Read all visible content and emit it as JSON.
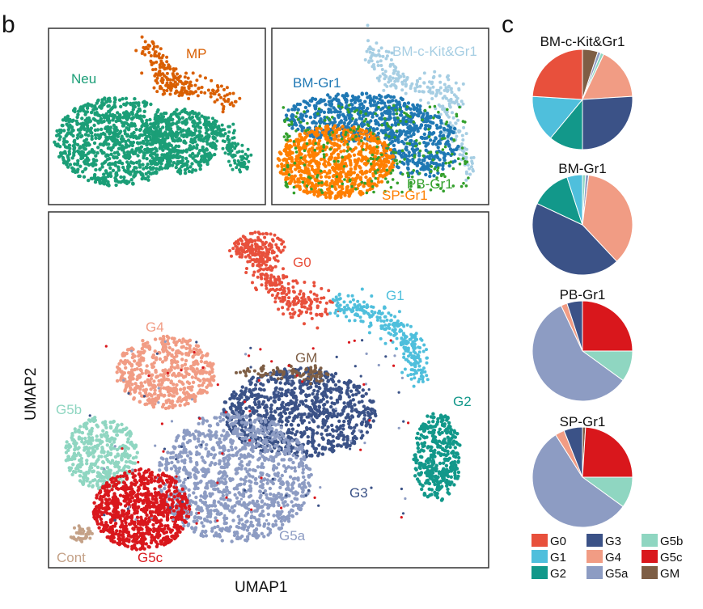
{
  "panel_b": {
    "letter": "b",
    "x_axis_label": "UMAP1",
    "y_axis_label": "UMAP2",
    "top_left": {
      "type": "scatter",
      "groups": [
        {
          "name": "Neu",
          "color": "#1b9e77"
        },
        {
          "name": "MP",
          "color": "#d95f02"
        }
      ]
    },
    "top_right": {
      "type": "scatter",
      "groups": [
        {
          "name": "BM-c-Kit&Gr1",
          "color": "#a6cee3"
        },
        {
          "name": "BM-Gr1",
          "color": "#1f78b4"
        },
        {
          "name": "PB-Gr1",
          "color": "#33a02c"
        },
        {
          "name": "SP-Gr1",
          "color": "#ff7f00"
        }
      ]
    },
    "main": {
      "type": "scatter",
      "clusters": [
        {
          "name": "G0",
          "color": "#e8503c"
        },
        {
          "name": "G1",
          "color": "#4fbfdc"
        },
        {
          "name": "G2",
          "color": "#12988a"
        },
        {
          "name": "G3",
          "color": "#3b5287"
        },
        {
          "name": "G4",
          "color": "#f19c84"
        },
        {
          "name": "G5a",
          "color": "#8d9cc3"
        },
        {
          "name": "G5b",
          "color": "#8fd6c1"
        },
        {
          "name": "G5c",
          "color": "#d9171c"
        },
        {
          "name": "GM",
          "color": "#7e5e45"
        },
        {
          "name": "Cont",
          "color": "#c4a187"
        }
      ]
    }
  },
  "panel_c": {
    "letter": "c",
    "chart_data": [
      {
        "type": "pie",
        "title": "BM-c-Kit&Gr1",
        "labels": [
          "GM",
          "G5a",
          "G5b",
          "G4",
          "G3",
          "G2",
          "G1",
          "G0"
        ],
        "values": [
          5,
          1,
          1,
          17,
          26,
          11,
          15,
          24
        ]
      },
      {
        "type": "pie",
        "title": "BM-Gr1",
        "labels": [
          "G5b",
          "G5a",
          "G4",
          "G3",
          "G2",
          "G1"
        ],
        "values": [
          1,
          1,
          36,
          44,
          13,
          5
        ]
      },
      {
        "type": "pie",
        "title": "PB-Gr1",
        "labels": [
          "G5c",
          "G5b",
          "G5a",
          "G4",
          "G3"
        ],
        "values": [
          25,
          10,
          58,
          2,
          5
        ]
      },
      {
        "type": "pie",
        "title": "SP-Gr1",
        "labels": [
          "GM",
          "G5c",
          "G5b",
          "G5a",
          "G4",
          "G3"
        ],
        "values": [
          1,
          24,
          10,
          56,
          3,
          6
        ]
      }
    ],
    "legend": [
      {
        "label": "G0",
        "color": "#e8503c"
      },
      {
        "label": "G3",
        "color": "#3b5287"
      },
      {
        "label": "G5b",
        "color": "#8fd6c1"
      },
      {
        "label": "G1",
        "color": "#4fbfdc"
      },
      {
        "label": "G4",
        "color": "#f19c84"
      },
      {
        "label": "G5c",
        "color": "#d9171c"
      },
      {
        "label": "G2",
        "color": "#12988a"
      },
      {
        "label": "G5a",
        "color": "#8d9cc3"
      },
      {
        "label": "GM",
        "color": "#7e5e45"
      }
    ]
  }
}
